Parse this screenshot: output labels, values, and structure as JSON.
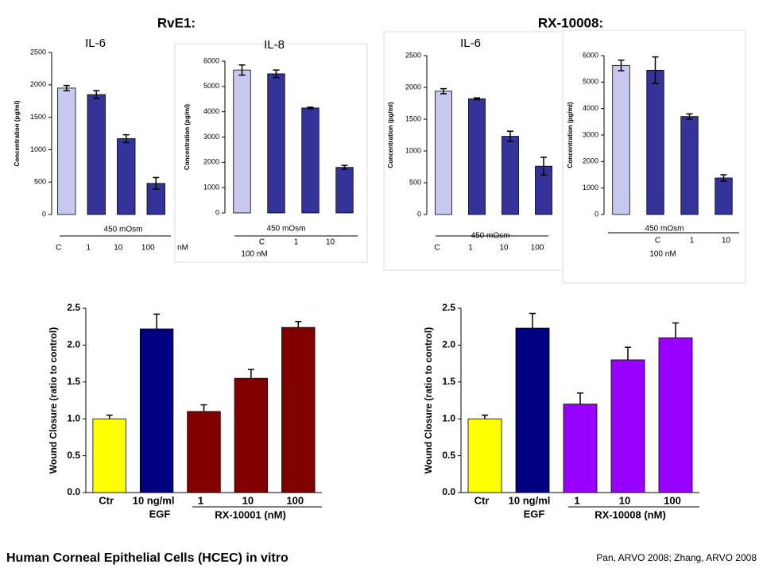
{
  "header": {
    "left": "RvE1:",
    "right": "RX-10008:"
  },
  "chart_data": [
    {
      "type": "bar",
      "title": "IL-6",
      "y_label": "Concentration (pg/ml)",
      "categories": [
        "C",
        "1",
        "10",
        "100"
      ],
      "values": [
        1950,
        1850,
        1170,
        480
      ],
      "errors": [
        40,
        60,
        60,
        90
      ],
      "colors": [
        "#c8c8f0",
        "#333399",
        "#333399",
        "#333399"
      ],
      "ylim": [
        0,
        2500
      ],
      "yticks": [
        0,
        500,
        1000,
        1500,
        2000,
        2500
      ],
      "annotations": [
        "450 mOsm",
        "nM"
      ]
    },
    {
      "type": "bar",
      "title": "IL-8",
      "y_label": "Concentration (pg/ml)",
      "categories": [
        null,
        "C",
        "1",
        "10"
      ],
      "values": [
        5650,
        5500,
        4150,
        1800
      ],
      "errors": [
        200,
        150,
        30,
        80
      ],
      "colors": [
        "#c8c8f0",
        "#333399",
        "#333399",
        "#333399"
      ],
      "ylim": [
        0,
        6000
      ],
      "yticks": [
        0,
        1000,
        2000,
        3000,
        4000,
        5000,
        6000
      ],
      "annotations": [
        "450 mOsm",
        "100 nM"
      ]
    },
    {
      "type": "bar",
      "title": "IL-6",
      "y_label": "Concentration (pg/ml)",
      "categories": [
        "C",
        "1",
        "10",
        "100"
      ],
      "values": [
        1940,
        1820,
        1230,
        760
      ],
      "errors": [
        40,
        15,
        80,
        140
      ],
      "colors": [
        "#c8c8f0",
        "#333399",
        "#333399",
        "#333399"
      ],
      "ylim": [
        0,
        2500
      ],
      "yticks": [
        0,
        500,
        1000,
        1500,
        2000,
        2500
      ],
      "annotations": [
        "450 mOsm"
      ]
    },
    {
      "type": "bar",
      "y_label": "Concentration (pg/ml)",
      "categories": [
        null,
        "C",
        "1",
        "10"
      ],
      "values": [
        5630,
        5450,
        3700,
        1380
      ],
      "errors": [
        200,
        500,
        100,
        120
      ],
      "colors": [
        "#c8c8f0",
        "#333399",
        "#333399",
        "#333399"
      ],
      "ylim": [
        0,
        6000
      ],
      "yticks": [
        0,
        1000,
        2000,
        3000,
        4000,
        5000,
        6000
      ],
      "annotations": [
        "450 mOsm",
        "100 nM"
      ]
    },
    {
      "type": "bar",
      "y_label": "Wound Closure (ratio to control)",
      "categories": [
        "Ctr",
        "10 ng/ml",
        "1",
        "10",
        "100"
      ],
      "values": [
        1.0,
        2.22,
        1.1,
        1.55,
        2.24
      ],
      "errors": [
        0.05,
        0.2,
        0.09,
        0.12,
        0.08
      ],
      "colors": [
        "#ffff00",
        "#000080",
        "#800000",
        "#800000",
        "#800000"
      ],
      "ylim": [
        0,
        2.5
      ],
      "yticks": [
        {
          "value": 0,
          "label": "0.0"
        },
        0.5,
        {
          "value": 1,
          "label": "1.0"
        },
        1.5,
        {
          "value": 2,
          "label": "2.0"
        },
        2.5
      ],
      "annotations": [
        "EGF",
        "RX-10001 (nM)"
      ]
    },
    {
      "type": "bar",
      "y_label": "Wound Closure (ratio to control)",
      "categories": [
        "Ctr",
        "10 ng/ml",
        "1",
        "10",
        "100"
      ],
      "values": [
        1.0,
        2.23,
        1.2,
        1.8,
        2.1
      ],
      "errors": [
        0.05,
        0.2,
        0.15,
        0.17,
        0.2
      ],
      "colors": [
        "#ffff00",
        "#000080",
        "#9900ff",
        "#9900ff",
        "#9900ff"
      ],
      "ylim": [
        0,
        2.5
      ],
      "yticks": [
        {
          "value": 0,
          "label": "0.0"
        },
        0.5,
        {
          "value": 1,
          "label": "1.0"
        },
        1.5,
        {
          "value": 2,
          "label": "2.0"
        },
        2.5
      ],
      "annotations": [
        "EGF",
        "RX-10008 (nM)"
      ]
    }
  ],
  "footer": {
    "title": "Human Corneal Epithelial Cells (HCEC) in vitro",
    "citation": "Pan, ARVO 2008; Zhang, ARVO 2008"
  }
}
